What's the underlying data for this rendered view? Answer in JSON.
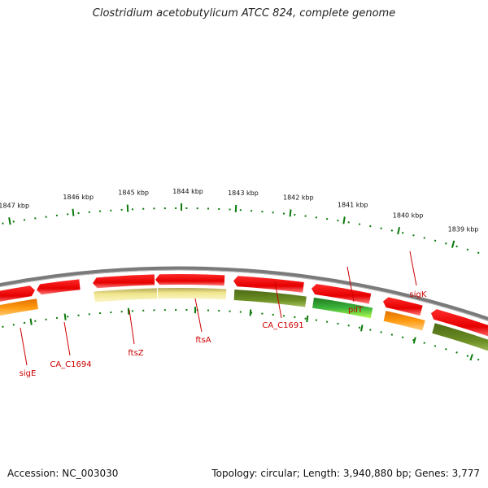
{
  "title": "Clostridium acetobutylicum ATCC 824, complete genome",
  "footer": {
    "accession": "Accession: NC_003030",
    "summary": "Topology: circular; Length: 3,940,880 bp; Genes: 3,777"
  },
  "scale_ticks": [
    "1847 kbp",
    "1846 kbp",
    "1845 kbp",
    "1844 kbp",
    "1843 kbp",
    "1842 kbp",
    "1841 kbp",
    "1840 kbp",
    "1839 kbp"
  ],
  "gene_labels": [
    "sigE",
    "CA_C1694",
    "ftsZ",
    "ftsA",
    "CA_C1691",
    "pilT",
    "sigK"
  ],
  "colors": {
    "backbone": "#7a7a7a",
    "red_gene": "#e60000",
    "orange_gene": "#ff8c00",
    "olive_gene": "#5f7f1f",
    "pale_gene": "#f0e68c",
    "green_gene": "#2e9a2e",
    "tick": "#0a7a0a",
    "label": "#cc0000"
  }
}
